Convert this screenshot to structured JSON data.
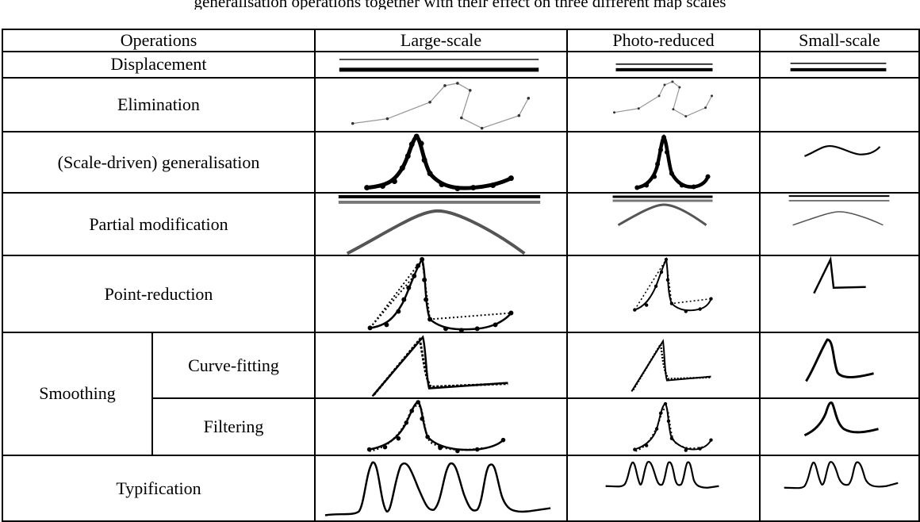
{
  "caption": "generalisation operations together with their effect on three different map scales",
  "header": {
    "operations": "Operations",
    "large": "Large-scale",
    "photo": "Photo-reduced",
    "small": "Small-scale"
  },
  "rows": [
    {
      "label": "Displacement"
    },
    {
      "label": "Elimination"
    },
    {
      "label": "(Scale-driven) generalisation"
    },
    {
      "label": "Partial modification"
    },
    {
      "label": "Point-reduction"
    },
    {
      "label": "Smoothing",
      "sub": [
        "Curve-fitting",
        "Filtering"
      ]
    },
    {
      "label": "Typification"
    }
  ],
  "colors": {
    "line": "#000000",
    "gray_line": "#777777",
    "light_line": "#999999"
  }
}
